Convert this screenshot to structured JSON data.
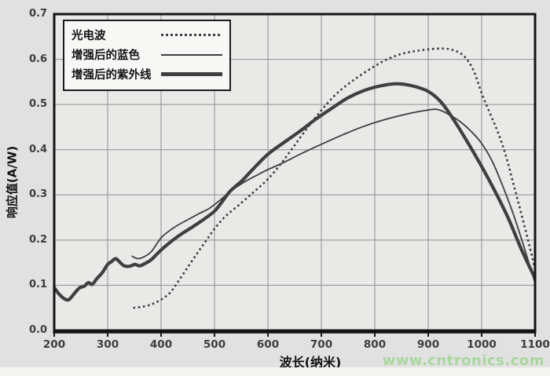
{
  "page": {
    "watermark": "www.cntronics.com"
  },
  "colors": {
    "background": "#e1e1e1",
    "plot_background": "#e9e9e8",
    "gridline": "#8f8f8f",
    "frame": "#141414",
    "curve": "#3f3f3f",
    "watermark_green": "#a9d69e",
    "legend_background": "#f7f7f6"
  },
  "chart_data": {
    "type": "line",
    "title": "",
    "xlabel": "波长(纳米)",
    "ylabel": "响应值(A/W)",
    "xlim": [
      200,
      1100
    ],
    "ylim": [
      0.0,
      0.7
    ],
    "x_ticks": [
      200,
      300,
      400,
      500,
      600,
      700,
      800,
      900,
      1000,
      1100
    ],
    "y_ticks": [
      0.0,
      0.1,
      0.2,
      0.3,
      0.4,
      0.5,
      0.6,
      0.7
    ],
    "y_tick_labels": [
      "0.0",
      "0.1",
      "0.2",
      "0.3",
      "0.4",
      "0.5",
      "0.6",
      "0.7"
    ],
    "grid": true,
    "legend_position": "top-left",
    "series": [
      {
        "name": "光电波",
        "id": "photoelectric-wave",
        "style": "dotted",
        "points": [
          [
            348,
            0.05
          ],
          [
            362,
            0.052
          ],
          [
            378,
            0.056
          ],
          [
            392,
            0.063
          ],
          [
            405,
            0.072
          ],
          [
            418,
            0.085
          ],
          [
            430,
            0.105
          ],
          [
            450,
            0.14
          ],
          [
            470,
            0.175
          ],
          [
            485,
            0.2
          ],
          [
            500,
            0.225
          ],
          [
            520,
            0.252
          ],
          [
            550,
            0.282
          ],
          [
            575,
            0.308
          ],
          [
            600,
            0.335
          ],
          [
            625,
            0.37
          ],
          [
            650,
            0.41
          ],
          [
            675,
            0.45
          ],
          [
            700,
            0.487
          ],
          [
            725,
            0.52
          ],
          [
            750,
            0.545
          ],
          [
            775,
            0.566
          ],
          [
            800,
            0.585
          ],
          [
            825,
            0.601
          ],
          [
            850,
            0.612
          ],
          [
            875,
            0.618
          ],
          [
            900,
            0.622
          ],
          [
            928,
            0.624
          ],
          [
            950,
            0.619
          ],
          [
            968,
            0.606
          ],
          [
            985,
            0.575
          ],
          [
            1000,
            0.525
          ],
          [
            1015,
            0.482
          ],
          [
            1030,
            0.44
          ],
          [
            1045,
            0.388
          ],
          [
            1060,
            0.322
          ],
          [
            1075,
            0.255
          ],
          [
            1090,
            0.185
          ],
          [
            1100,
            0.135
          ]
        ]
      },
      {
        "name": "增强后的蓝色",
        "id": "enhanced-blue",
        "style": "thin",
        "points": [
          [
            345,
            0.165
          ],
          [
            356,
            0.159
          ],
          [
            368,
            0.163
          ],
          [
            382,
            0.175
          ],
          [
            400,
            0.205
          ],
          [
            415,
            0.22
          ],
          [
            430,
            0.232
          ],
          [
            450,
            0.245
          ],
          [
            470,
            0.258
          ],
          [
            490,
            0.27
          ],
          [
            510,
            0.288
          ],
          [
            530,
            0.308
          ],
          [
            555,
            0.328
          ],
          [
            580,
            0.344
          ],
          [
            600,
            0.356
          ],
          [
            630,
            0.372
          ],
          [
            660,
            0.39
          ],
          [
            700,
            0.412
          ],
          [
            740,
            0.433
          ],
          [
            780,
            0.452
          ],
          [
            820,
            0.467
          ],
          [
            860,
            0.479
          ],
          [
            895,
            0.487
          ],
          [
            918,
            0.489
          ],
          [
            940,
            0.477
          ],
          [
            960,
            0.462
          ],
          [
            980,
            0.441
          ],
          [
            1000,
            0.414
          ],
          [
            1020,
            0.374
          ],
          [
            1040,
            0.318
          ],
          [
            1060,
            0.255
          ],
          [
            1080,
            0.182
          ],
          [
            1100,
            0.105
          ]
        ]
      },
      {
        "name": "增强后的紫外线",
        "id": "enhanced-ultraviolet",
        "style": "thick",
        "points": [
          [
            200,
            0.095
          ],
          [
            208,
            0.082
          ],
          [
            218,
            0.071
          ],
          [
            227,
            0.068
          ],
          [
            237,
            0.081
          ],
          [
            247,
            0.094
          ],
          [
            256,
            0.098
          ],
          [
            264,
            0.106
          ],
          [
            271,
            0.102
          ],
          [
            280,
            0.115
          ],
          [
            290,
            0.128
          ],
          [
            300,
            0.146
          ],
          [
            308,
            0.153
          ],
          [
            315,
            0.159
          ],
          [
            323,
            0.151
          ],
          [
            331,
            0.143
          ],
          [
            341,
            0.142
          ],
          [
            351,
            0.146
          ],
          [
            360,
            0.143
          ],
          [
            371,
            0.149
          ],
          [
            382,
            0.157
          ],
          [
            400,
            0.178
          ],
          [
            420,
            0.198
          ],
          [
            440,
            0.215
          ],
          [
            460,
            0.23
          ],
          [
            480,
            0.246
          ],
          [
            500,
            0.264
          ],
          [
            515,
            0.286
          ],
          [
            530,
            0.309
          ],
          [
            552,
            0.332
          ],
          [
            572,
            0.357
          ],
          [
            600,
            0.39
          ],
          [
            630,
            0.416
          ],
          [
            660,
            0.441
          ],
          [
            690,
            0.468
          ],
          [
            720,
            0.492
          ],
          [
            750,
            0.515
          ],
          [
            780,
            0.531
          ],
          [
            810,
            0.541
          ],
          [
            840,
            0.546
          ],
          [
            868,
            0.542
          ],
          [
            900,
            0.529
          ],
          [
            925,
            0.504
          ],
          [
            950,
            0.462
          ],
          [
            975,
            0.414
          ],
          [
            1000,
            0.363
          ],
          [
            1025,
            0.308
          ],
          [
            1050,
            0.248
          ],
          [
            1075,
            0.178
          ],
          [
            1100,
            0.115
          ]
        ]
      }
    ]
  }
}
